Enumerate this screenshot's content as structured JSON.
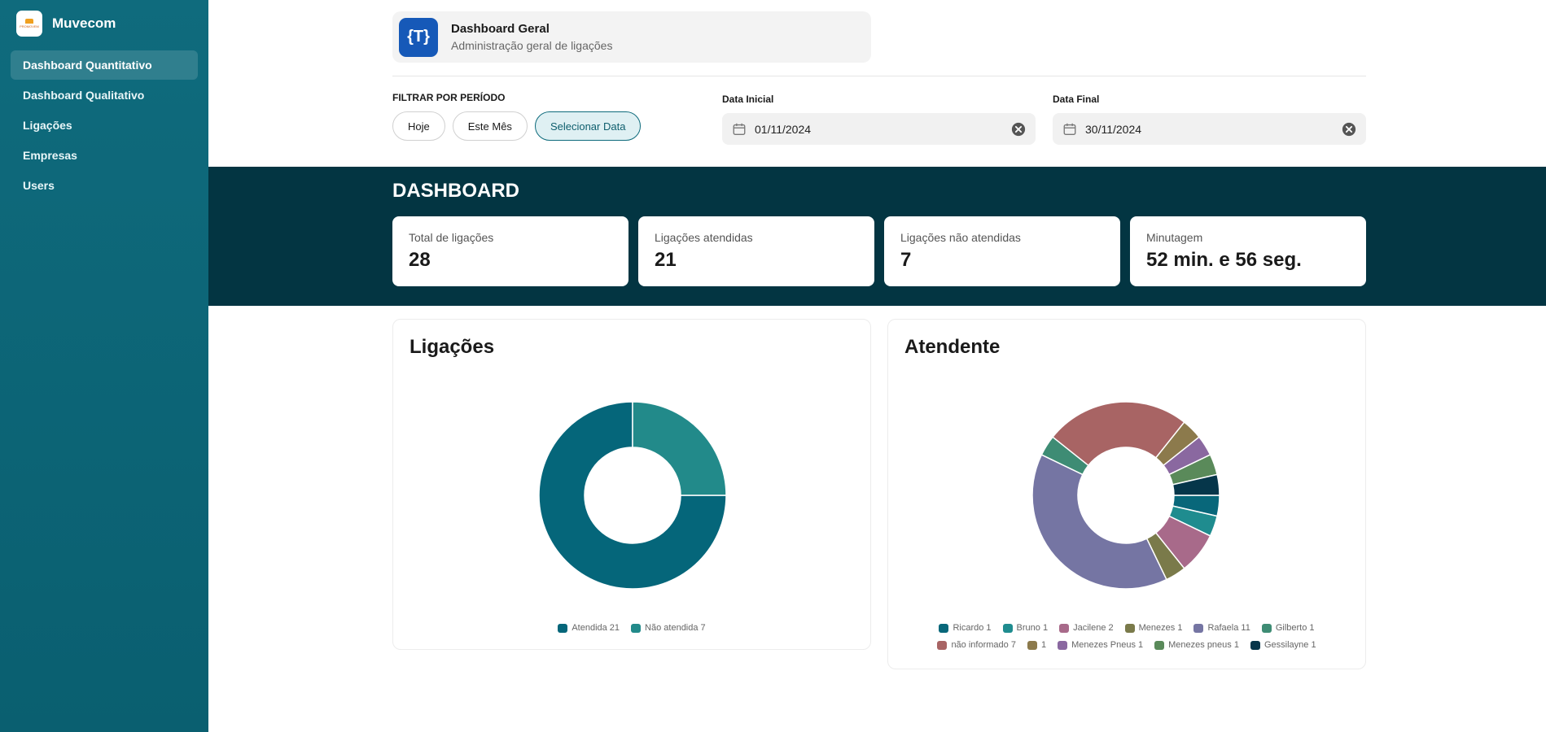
{
  "app": {
    "name": "Muvecom",
    "logo_text": "PROMOVEM"
  },
  "sidebar": {
    "items": [
      {
        "label": "Dashboard Quantitativo",
        "active": true
      },
      {
        "label": "Dashboard Qualitativo",
        "active": false
      },
      {
        "label": "Ligações",
        "active": false
      },
      {
        "label": "Empresas",
        "active": false
      },
      {
        "label": "Users",
        "active": false
      }
    ]
  },
  "header": {
    "logo_glyph": "{T}",
    "title": "Dashboard Geral",
    "subtitle": "Administração geral de ligações"
  },
  "filter": {
    "label": "FILTRAR POR PERÍODO",
    "today": "Hoje",
    "month": "Este Mês",
    "select": "Selecionar Data",
    "start_label": "Data Inicial",
    "start_value": "01/11/2024",
    "end_label": "Data Final",
    "end_value": "30/11/2024"
  },
  "dashboard": {
    "title": "DASHBOARD",
    "stats": [
      {
        "label": "Total de ligações",
        "value": "28"
      },
      {
        "label": "Ligações atendidas",
        "value": "21"
      },
      {
        "label": "Ligações não atendidas",
        "value": "7"
      },
      {
        "label": "Minutagem",
        "value": "52 min. e 56 seg."
      }
    ]
  },
  "colors": {
    "sidebar": "#0f6b7d",
    "band": "#033542",
    "accent": "#0e6b7c"
  },
  "chart_data": [
    {
      "type": "pie",
      "title": "Ligações",
      "donut": true,
      "series": [
        {
          "name": "Atendida",
          "value": 21,
          "color": "#05667a"
        },
        {
          "name": "Não atendida",
          "value": 7,
          "color": "#228a8a"
        }
      ]
    },
    {
      "type": "pie",
      "title": "Atendente",
      "donut": true,
      "series": [
        {
          "name": "Ricardo",
          "value": 1,
          "color": "#08677a"
        },
        {
          "name": "Bruno",
          "value": 1,
          "color": "#1f8c8f"
        },
        {
          "name": "Jacilene",
          "value": 2,
          "color": "#a86a8a"
        },
        {
          "name": "Menezes",
          "value": 1,
          "color": "#7a7a4a"
        },
        {
          "name": "Rafaela",
          "value": 11,
          "color": "#7575a3"
        },
        {
          "name": "Gilberto",
          "value": 1,
          "color": "#3e8c74"
        },
        {
          "name": "não informado",
          "value": 7,
          "color": "#a86464"
        },
        {
          "name": "",
          "value": 1,
          "color": "#8c7a4c"
        },
        {
          "name": "Menezes Pneus",
          "value": 1,
          "color": "#8a68a0"
        },
        {
          "name": "Menezes pneus",
          "value": 1,
          "color": "#5a8a5a"
        },
        {
          "name": "Gessilayne",
          "value": 1,
          "color": "#06364a"
        }
      ]
    }
  ]
}
